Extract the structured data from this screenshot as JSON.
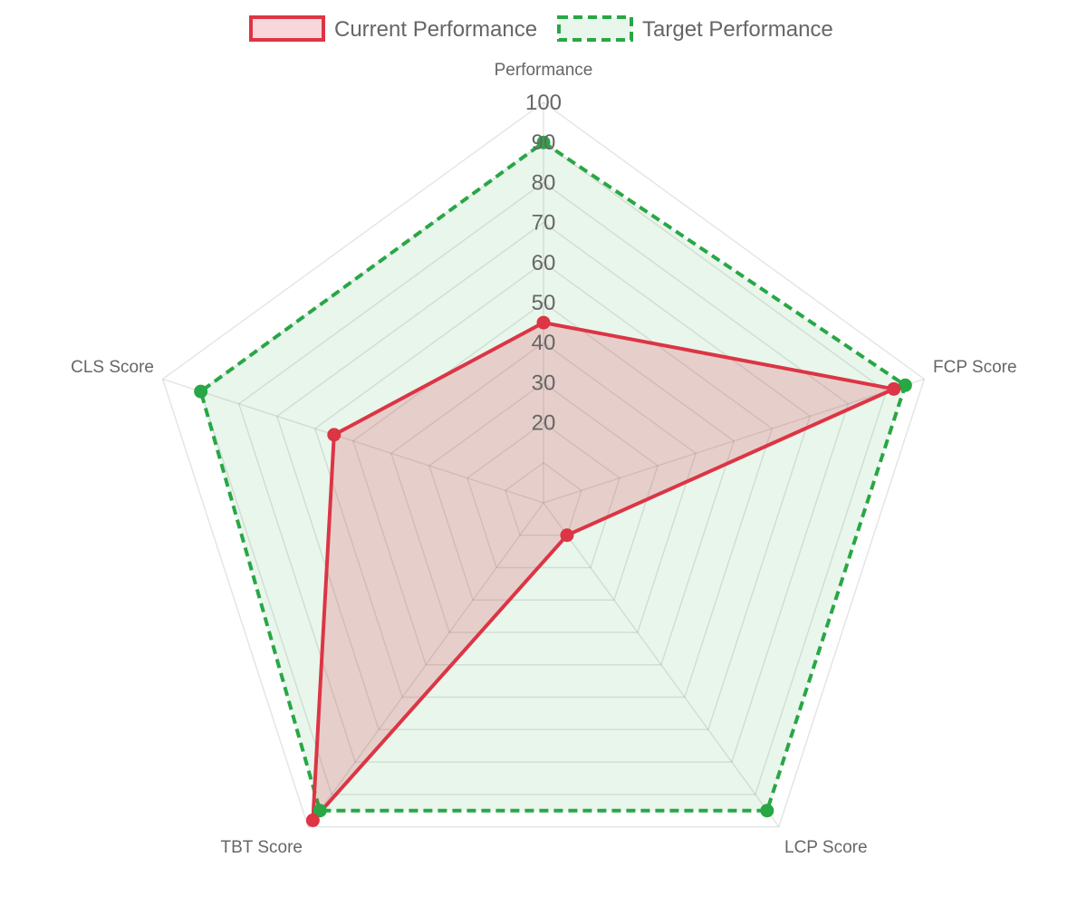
{
  "chart_data": {
    "type": "radar",
    "categories": [
      "Performance",
      "FCP Score",
      "LCP Score",
      "TBT Score",
      "CLS Score"
    ],
    "series": [
      {
        "name": "Current Performance",
        "values": [
          45,
          92,
          10,
          98,
          55
        ],
        "stroke": "#dc3545",
        "fill": "rgba(220,53,69,0.2)",
        "dash": "solid"
      },
      {
        "name": "Target Performance",
        "values": [
          90,
          95,
          95,
          95,
          90
        ],
        "stroke": "#28a745",
        "fill": "rgba(40,167,69,0.1)",
        "dash": "dashed"
      }
    ],
    "rlim": [
      0,
      100
    ],
    "ticks": [
      20,
      30,
      40,
      50,
      60,
      70,
      80,
      90,
      100
    ],
    "grid": true,
    "legend_position": "top"
  }
}
